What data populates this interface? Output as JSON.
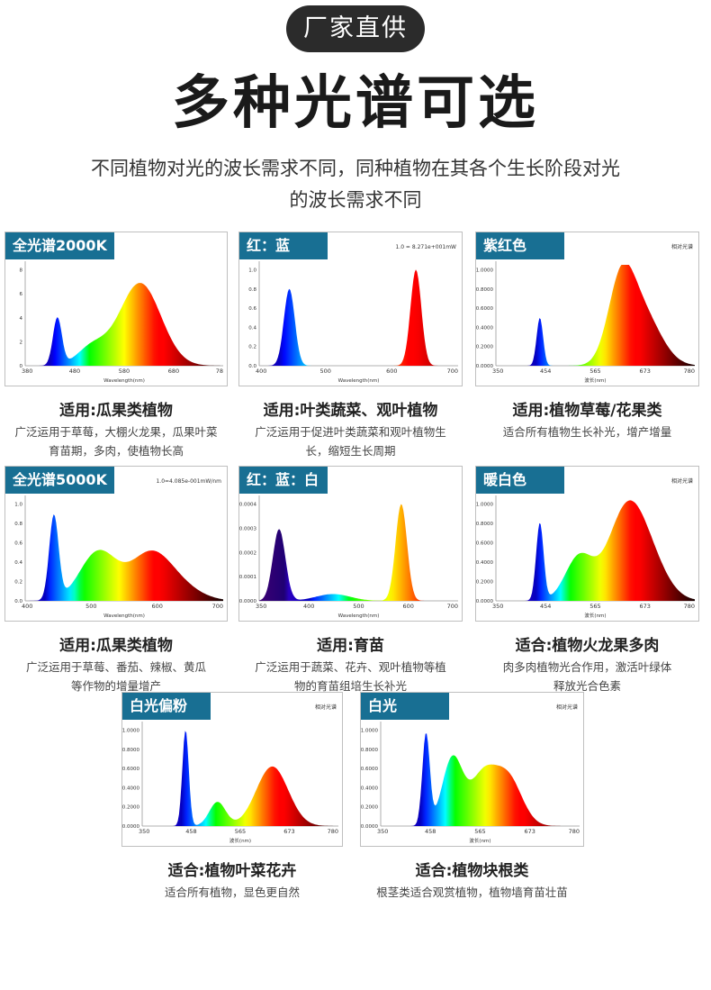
{
  "header": {
    "badge": "厂家直供",
    "title": "多种光谱可选",
    "subtitle_line1": "不同植物对光的波长需求不同，同种植物在其各个生长阶段对光",
    "subtitle_line2": "的波长需求不同"
  },
  "chart_data": [
    {
      "type": "area",
      "label": "全光谱2000K",
      "note": "",
      "xlabel": "Wavelength(nm)",
      "xlim": [
        380,
        780
      ],
      "xticks": [
        "380",
        "480",
        "580",
        "680",
        "78"
      ],
      "yticks": [
        "0",
        "2",
        "4",
        "6",
        "8"
      ],
      "ylim": [
        0,
        1
      ],
      "peaks": [
        [
          445,
          0.47,
          9
        ],
        [
          515,
          0.18,
          30
        ],
        [
          612,
          0.82,
          42
        ]
      ],
      "caption_title": "适用:瓜果类植物",
      "caption_lines": [
        "广泛运用于草莓，大棚火龙果，瓜果叶菜",
        "育苗期，多肉，使植物长高"
      ]
    },
    {
      "type": "area",
      "label": "红：蓝",
      "note": "1.0 = 8.271e+001mW",
      "xlabel": "Wavelength(nm)",
      "xlim": [
        400,
        730
      ],
      "xticks": [
        "400",
        "500",
        "600",
        "700"
      ],
      "yticks": [
        "0.0",
        "0.2",
        "0.4",
        "0.6",
        "0.8",
        "1.0"
      ],
      "ylim": [
        0,
        1.05
      ],
      "peaks": [
        [
          450,
          0.8,
          9
        ],
        [
          660,
          1.0,
          9
        ]
      ],
      "caption_title": "适用:叶类蔬菜、观叶植物",
      "caption_lines": [
        "广泛运用于促进叶类蔬菜和观叶植物生",
        "长，缩短生长周期"
      ]
    },
    {
      "type": "area",
      "label": "紫红色",
      "note": "相对光谱",
      "xlabel": "波长(nm)",
      "xlim": [
        350,
        780
      ],
      "xticks": [
        "350",
        "454",
        "565",
        "673",
        "780"
      ],
      "yticks": [
        "0.0000",
        "0.2000",
        "0.4000",
        "0.6000",
        "0.8000",
        "1.0000"
      ],
      "ylim": [
        0,
        1.05
      ],
      "peaks": [
        [
          445,
          0.5,
          7
        ],
        [
          620,
          0.75,
          28
        ],
        [
          665,
          0.55,
          40
        ]
      ],
      "caption_title": "适用:植物草莓/花果类",
      "caption_lines": [
        "适合所有植物生长补光，增产增量"
      ]
    },
    {
      "type": "area",
      "label": "全光谱5000K",
      "note": "1.0=4.085e-001mW/nm",
      "xlabel": "Wavelength(nm)",
      "xlim": [
        400,
        780
      ],
      "xticks": [
        "400",
        "500",
        "600",
        "700"
      ],
      "yticks": [
        "0.0",
        "0.2",
        "0.4",
        "0.6",
        "0.8",
        "1.0"
      ],
      "ylim": [
        0,
        1.15
      ],
      "peaks": [
        [
          455,
          0.95,
          9
        ],
        [
          540,
          0.55,
          35
        ],
        [
          640,
          0.52,
          40
        ],
        [
          700,
          0.12,
          40
        ]
      ],
      "caption_title": "适用:瓜果类植物",
      "caption_lines": [
        "广泛运用于草莓、番茄、辣椒、黄瓜",
        "等作物的增量增产"
      ]
    },
    {
      "type": "area",
      "label": "红：蓝：白",
      "note": "",
      "xlabel": "Wavelength(nm)",
      "xlim": [
        350,
        700
      ],
      "xticks": [
        "350",
        "400",
        "500",
        "600",
        "700"
      ],
      "yticks": [
        "0.0000",
        "0.0001",
        "0.0002",
        "0.0003",
        "0.0004"
      ],
      "ylim": [
        0,
        1.05
      ],
      "peaks": [
        [
          385,
          0.74,
          11
        ],
        [
          480,
          0.07,
          30
        ],
        [
          600,
          1.0,
          10
        ]
      ],
      "caption_title": "适用:育苗",
      "caption_lines": [
        "广泛运用于蔬菜、花卉、观叶植物等植",
        "物的育苗组培生长补光"
      ]
    },
    {
      "type": "area",
      "label": "暖白色",
      "note": "相对光谱",
      "xlabel": "波长(nm)",
      "xlim": [
        350,
        780
      ],
      "xticks": [
        "350",
        "454",
        "565",
        "673",
        "780"
      ],
      "yticks": [
        "0.0000",
        "0.2000",
        "0.4000",
        "0.6000",
        "0.8000",
        "1.0000"
      ],
      "ylim": [
        0,
        1.05
      ],
      "peaks": [
        [
          445,
          0.8,
          8
        ],
        [
          530,
          0.45,
          30
        ],
        [
          630,
          0.85,
          40
        ],
        [
          680,
          0.35,
          40
        ]
      ],
      "caption_title": "适合:植物火龙果多肉",
      "caption_lines": [
        "肉多肉植物光合作用，激活叶绿体",
        "释放光合色素"
      ]
    },
    {
      "type": "area",
      "label": "白光偏粉",
      "note": "相对光谱",
      "xlabel": "波长(nm)",
      "xlim": [
        350,
        780
      ],
      "xticks": [
        "350",
        "458",
        "565",
        "673",
        "780"
      ],
      "yticks": [
        "0.0000",
        "0.2000",
        "0.4000",
        "0.6000",
        "0.8000",
        "1.0000"
      ],
      "ylim": [
        0,
        1.05
      ],
      "peaks": [
        [
          445,
          1.0,
          7
        ],
        [
          515,
          0.25,
          18
        ],
        [
          635,
          0.62,
          35
        ]
      ],
      "caption_title": "适合:植物叶菜花卉",
      "caption_lines": [
        "适合所有植物，显色更自然"
      ]
    },
    {
      "type": "area",
      "label": "白光",
      "note": "相对光谱",
      "xlabel": "波长(nm)",
      "xlim": [
        350,
        780
      ],
      "xticks": [
        "350",
        "458",
        "565",
        "673",
        "780"
      ],
      "yticks": [
        "0.0000",
        "0.2000",
        "0.4000",
        "0.6000",
        "0.8000",
        "1.0000"
      ],
      "ylim": [
        0,
        1.05
      ],
      "peaks": [
        [
          448,
          0.95,
          8
        ],
        [
          505,
          0.7,
          22
        ],
        [
          570,
          0.5,
          28
        ],
        [
          625,
          0.5,
          30
        ]
      ],
      "caption_title": "适合:植物块根类",
      "caption_lines": [
        "根茎类适合观赏植物，植物墙育苗壮苗"
      ]
    }
  ]
}
